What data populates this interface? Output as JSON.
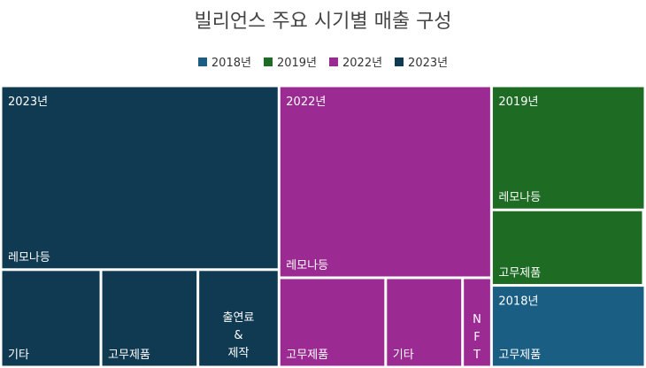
{
  "chart_data": {
    "type": "treemap",
    "title": "빌리언스 주요 시기별 매출 구성",
    "legend_position": "top-center",
    "series": [
      {
        "name": "2018년",
        "color": "#1a5e84"
      },
      {
        "name": "2019년",
        "color": "#1e6b23"
      },
      {
        "name": "2022년",
        "color": "#9b2a93"
      },
      {
        "name": "2023년",
        "color": "#0f3a52"
      }
    ],
    "groups": [
      {
        "name": "2023년",
        "color": "#0f3a52",
        "children": [
          {
            "label": "레모나등",
            "value": 69.2
          },
          {
            "label": "기타",
            "value": 13.2
          },
          {
            "label": "고무제품",
            "value": 12.8
          },
          {
            "label": "출연료 & 제작",
            "value": 10.7
          }
        ]
      },
      {
        "name": "2022년",
        "color": "#9b2a93",
        "children": [
          {
            "label": "레모나등",
            "value": 55.2
          },
          {
            "label": "고무제품",
            "value": 12.9
          },
          {
            "label": "기타",
            "value": 9.3
          },
          {
            "label": "NFT",
            "value": 3.5
          }
        ]
      },
      {
        "name": "2019년",
        "color": "#1e6b23",
        "children": [
          {
            "label": "레모나등",
            "value": 25.8
          },
          {
            "label": "고무제품",
            "value": 15.7
          }
        ]
      },
      {
        "name": "2018년",
        "color": "#1a5e84",
        "children": [
          {
            "label": "고무제품",
            "value": 17.0
          }
        ]
      }
    ]
  }
}
